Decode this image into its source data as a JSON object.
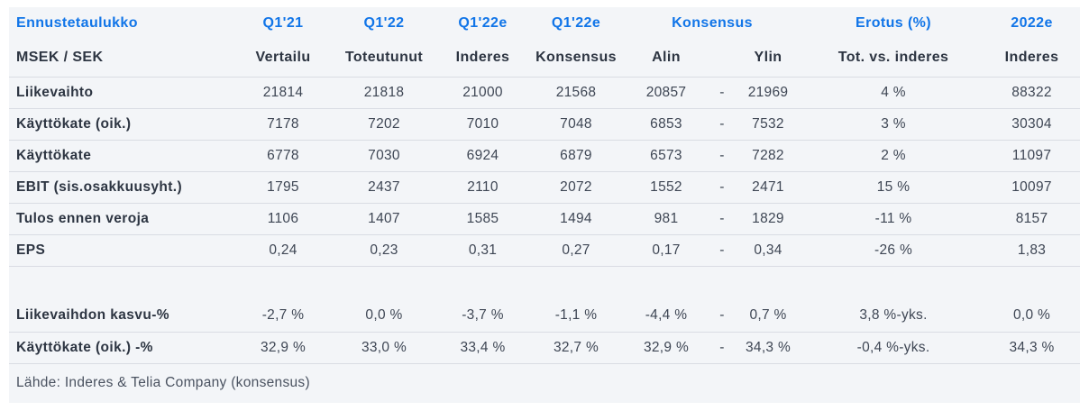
{
  "colors": {
    "accent_blue": "#1175e8",
    "text_dark": "#2d3542",
    "text_number": "#3e4654",
    "table_background": "#f3f5f8",
    "divider": "#d9dce3",
    "page_background": "#ffffff"
  },
  "header": {
    "row1": {
      "title": "Ennustetaulukko",
      "c1": "Q1'21",
      "c2": "Q1'22",
      "c3": "Q1'22e",
      "c4": "Q1'22e",
      "konsensus": "Konsensus",
      "erotus": "Erotus (%)",
      "year": "2022e"
    },
    "row2": {
      "unit": "MSEK / SEK",
      "c1": "Vertailu",
      "c2": "Toteutunut",
      "c3": "Inderes",
      "c4": "Konsensus",
      "alin": "Alin",
      "ylin": "Ylin",
      "erotus": "Tot. vs. inderes",
      "year": "Inderes"
    }
  },
  "table": {
    "rows": [
      {
        "label": "Liikevaihto",
        "divider": true,
        "blank": false,
        "tall": false,
        "cells": [
          "21814",
          "21818",
          "21000",
          "21568",
          "20857",
          "-",
          "21969",
          "4 %",
          "88322"
        ]
      },
      {
        "label": "Käyttökate (oik.)",
        "divider": true,
        "blank": false,
        "tall": false,
        "cells": [
          "7178",
          "7202",
          "7010",
          "7048",
          "6853",
          "-",
          "7532",
          "3 %",
          "30304"
        ]
      },
      {
        "label": "Käyttökate",
        "divider": true,
        "blank": false,
        "tall": false,
        "cells": [
          "6778",
          "7030",
          "6924",
          "6879",
          "6573",
          "-",
          "7282",
          "2 %",
          "11097"
        ]
      },
      {
        "label": "EBIT (sis.osakkuusyht.)",
        "divider": true,
        "blank": false,
        "tall": false,
        "cells": [
          "1795",
          "2437",
          "2110",
          "2072",
          "1552",
          "-",
          "2471",
          "15 %",
          "10097"
        ]
      },
      {
        "label": "Tulos ennen veroja",
        "divider": true,
        "blank": false,
        "tall": false,
        "cells": [
          "1106",
          "1407",
          "1585",
          "1494",
          "981",
          "-",
          "1829",
          "-11 %",
          "8157"
        ]
      },
      {
        "label": "EPS",
        "divider": true,
        "blank": false,
        "tall": false,
        "cells": [
          "0,24",
          "0,23",
          "0,31",
          "0,27",
          "0,17",
          "-",
          "0,34",
          "-26 %",
          "1,83"
        ]
      },
      {
        "label": "",
        "divider": true,
        "blank": true,
        "tall": false,
        "cells": [
          "",
          "",
          "",
          "",
          "",
          "",
          "",
          "",
          ""
        ]
      },
      {
        "label": "Liikevaihdon kasvu-%",
        "divider": false,
        "blank": false,
        "tall": true,
        "cells": [
          "-2,7 %",
          "0,0 %",
          "-3,7 %",
          "-1,1 %",
          "-4,4 %",
          "-",
          "0,7 %",
          "3,8 %-yks.",
          "0,0 %"
        ]
      },
      {
        "label": "Käyttökate (oik.) -%",
        "divider": true,
        "blank": false,
        "tall": false,
        "cells": [
          "32,9 %",
          "33,0 %",
          "33,4 %",
          "32,7 %",
          "32,9 %",
          "-",
          "34,3 %",
          "-0,4 %-yks.",
          "34,3 %"
        ]
      }
    ]
  },
  "footer": {
    "source": "Lähde: Inderes & Telia Company  (konsensus)"
  }
}
